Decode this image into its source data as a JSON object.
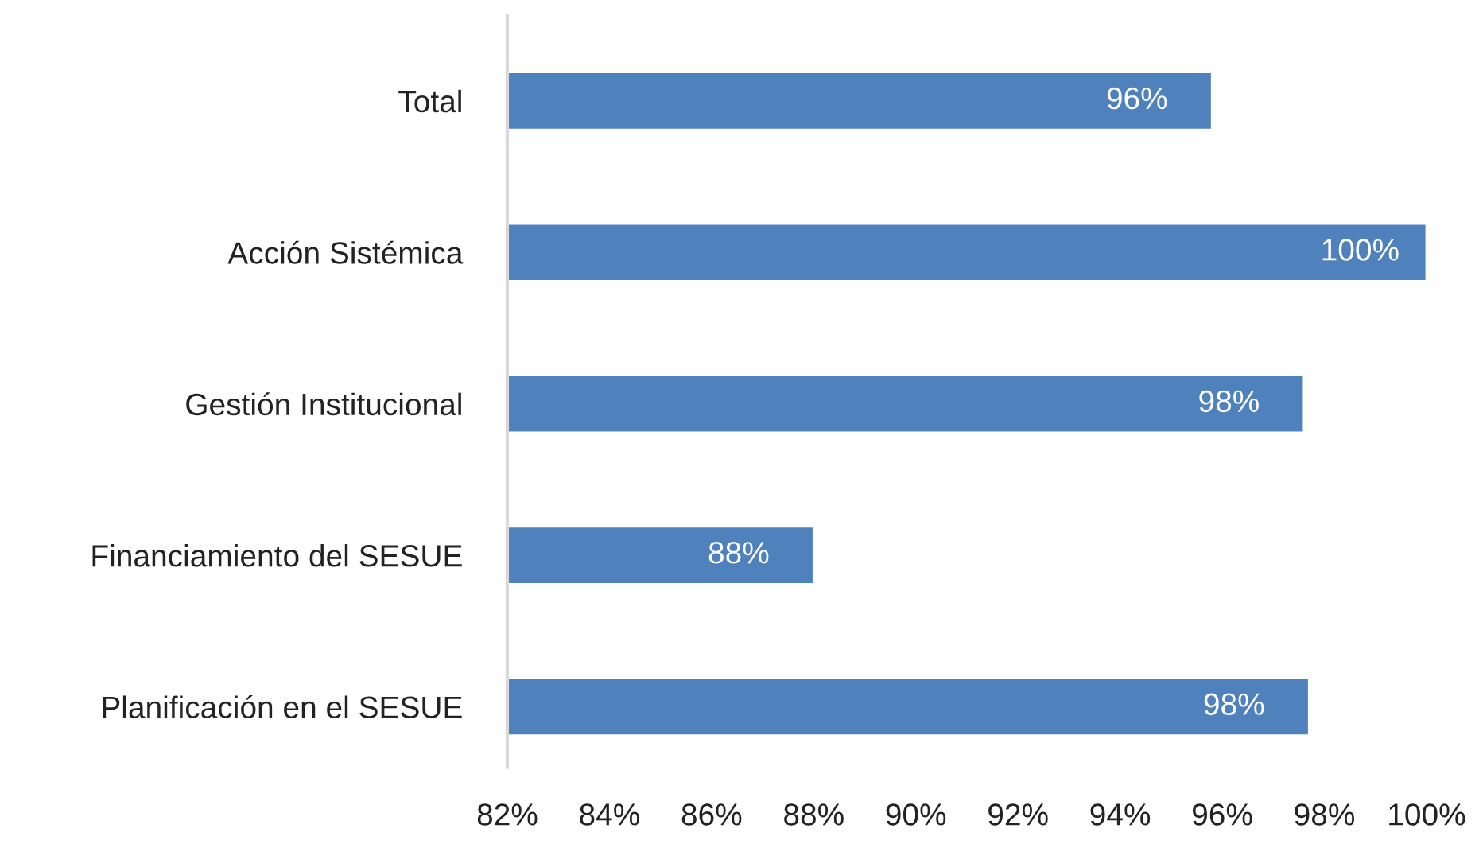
{
  "chart_data": {
    "type": "bar",
    "orientation": "horizontal",
    "categories": [
      "Total",
      "Acción Sistémica",
      "Gestión Institucional",
      "Financiamiento del SESUE",
      "Planificación en el SESUE"
    ],
    "values": [
      95.8,
      100,
      97.6,
      88.0,
      97.7
    ],
    "value_labels": [
      "96%",
      "100%",
      "98%",
      "88%",
      "98%"
    ],
    "color": "#4f81bd",
    "xlim": [
      82,
      100
    ],
    "xticks": [
      {
        "value": 82,
        "label": "82%"
      },
      {
        "value": 84,
        "label": "84%"
      },
      {
        "value": 86,
        "label": "86%"
      },
      {
        "value": 88,
        "label": "88%"
      },
      {
        "value": 90,
        "label": "90%"
      },
      {
        "value": 92,
        "label": "92%"
      },
      {
        "value": 94,
        "label": "94%"
      },
      {
        "value": 96,
        "label": "96%"
      },
      {
        "value": 98,
        "label": "98%"
      },
      {
        "value": 100,
        "label": "100%"
      }
    ],
    "grid": false,
    "legend": false
  }
}
